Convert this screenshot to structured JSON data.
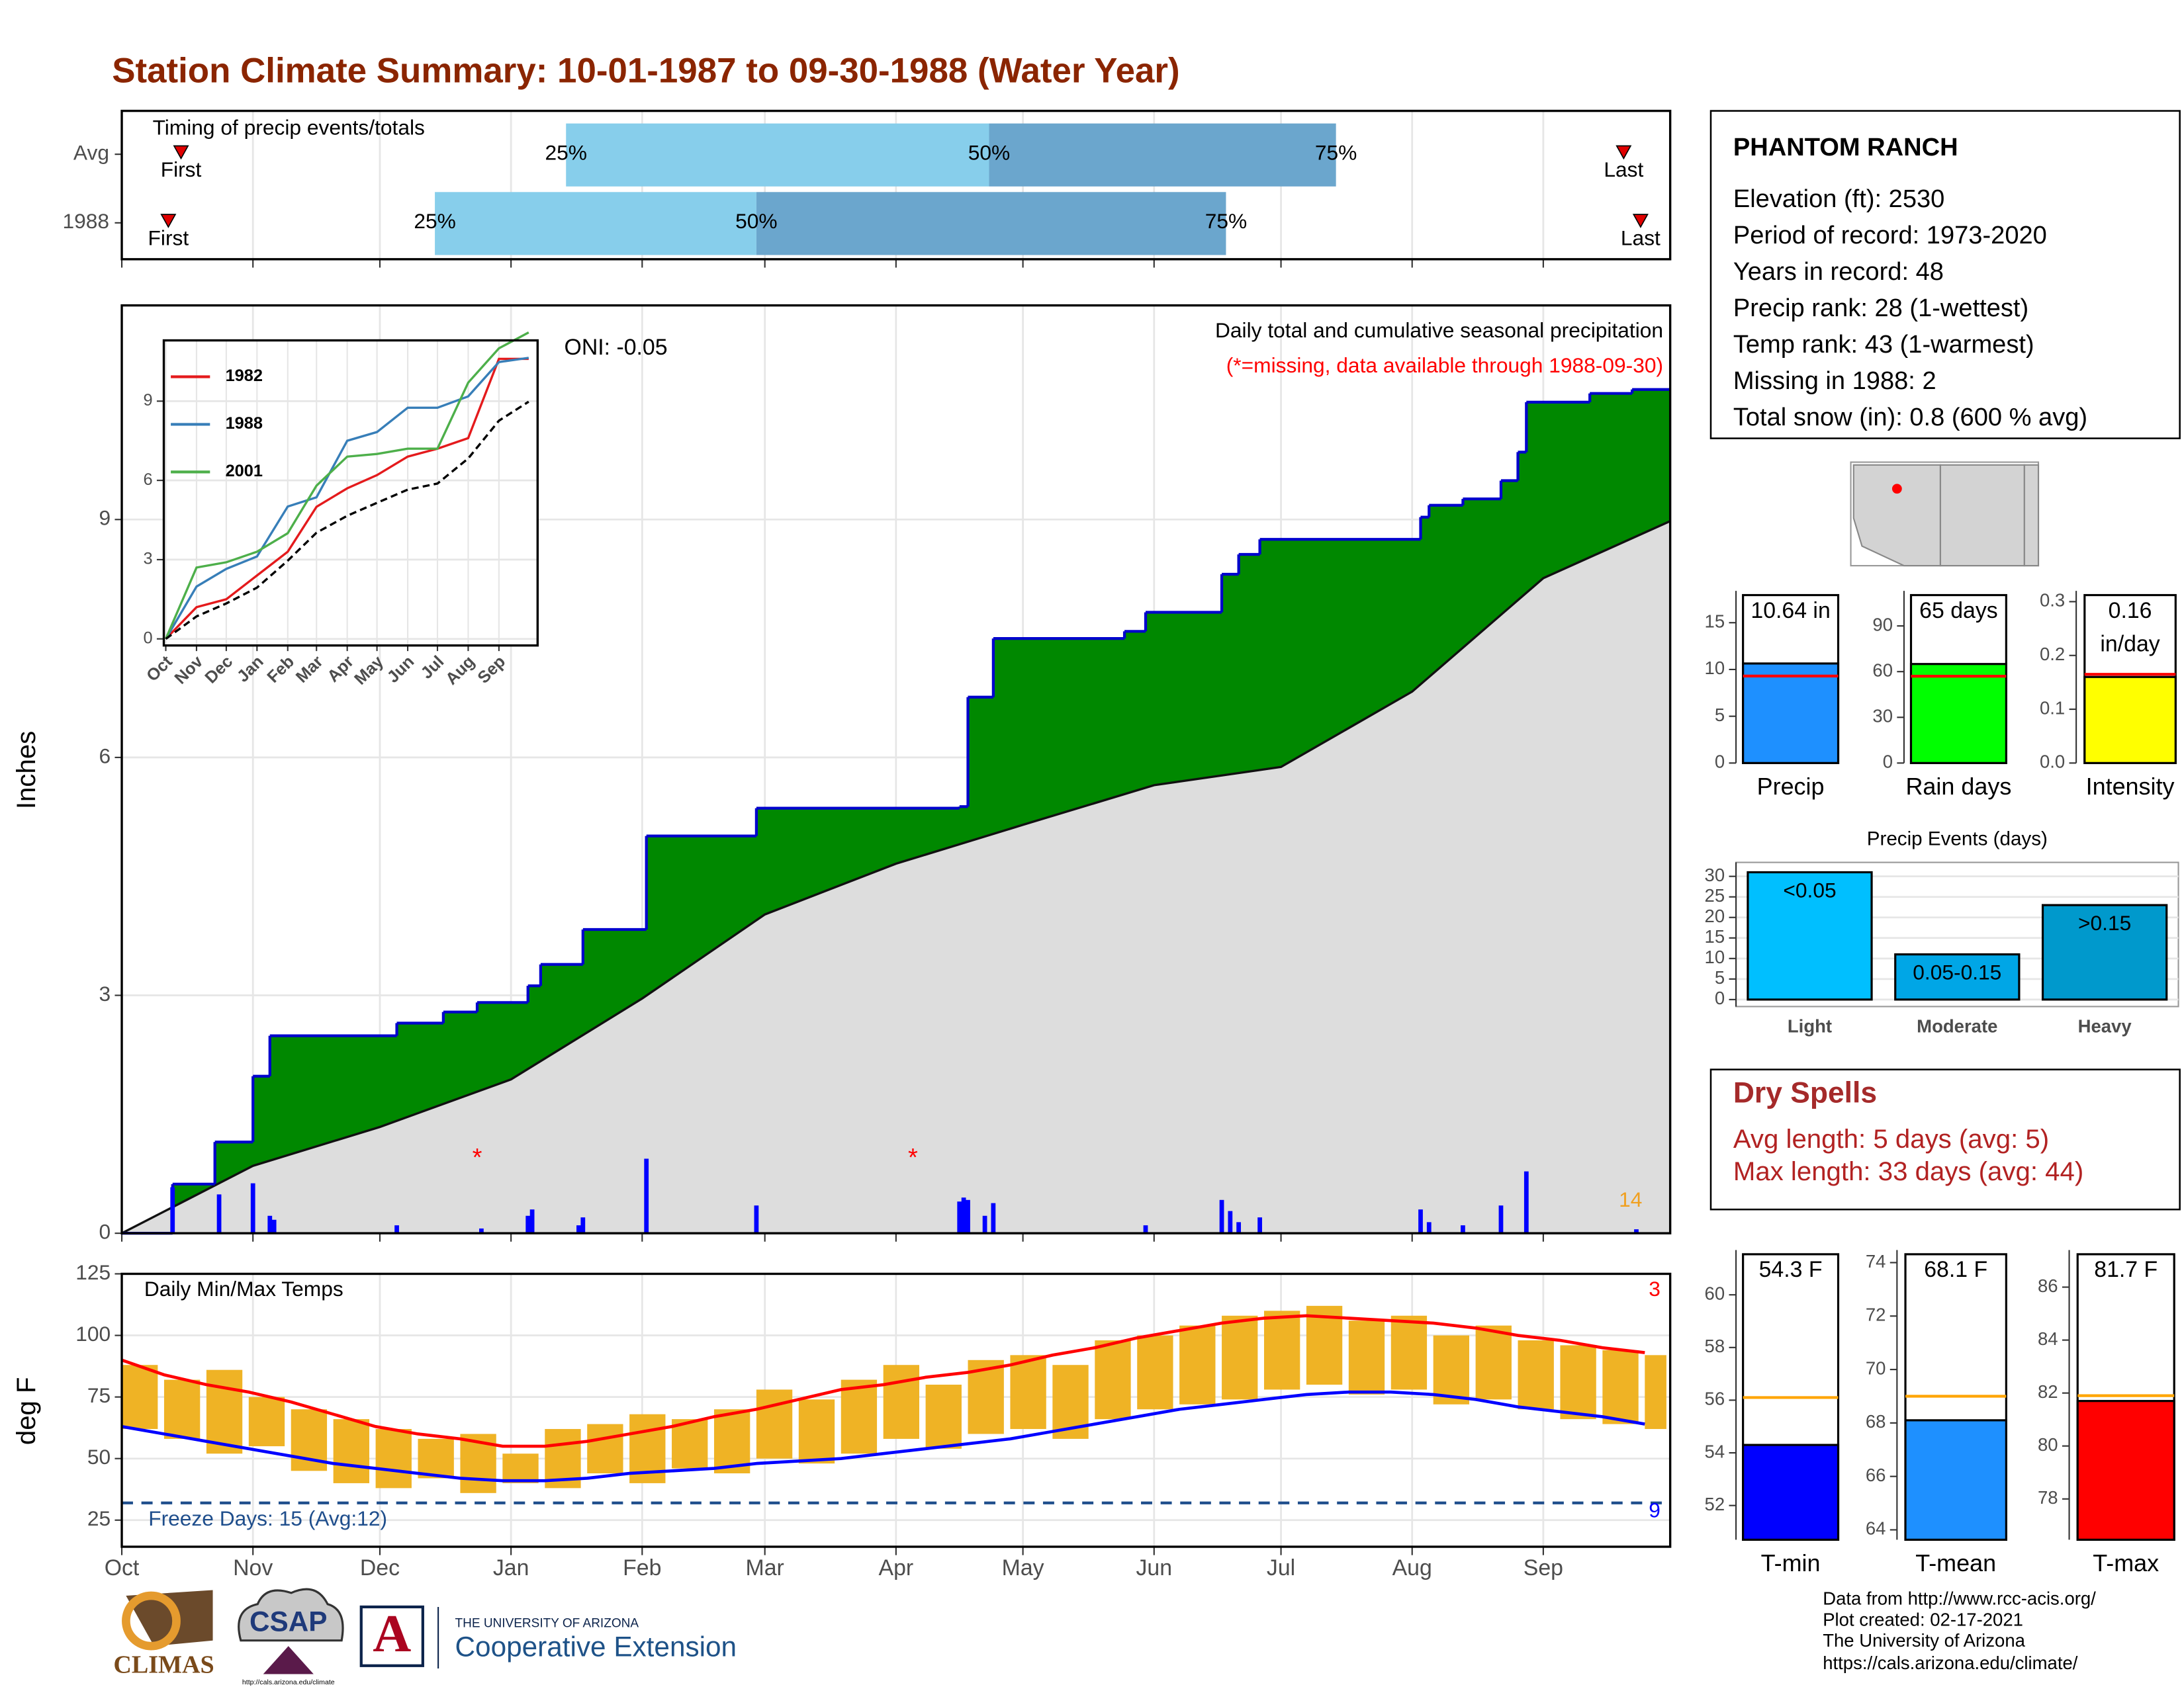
{
  "title": "Station Climate Summary: 10-01-1987 to 09-30-1988 (Water Year)",
  "chart_data": [
    {
      "type": "timing",
      "title": "Timing of precip events/totals",
      "xlim": [
        0,
        366
      ],
      "rows": [
        {
          "name": "Avg",
          "first": 14,
          "q25": 105,
          "q50": 205,
          "q75": 287,
          "last": 355
        },
        {
          "name": "1988",
          "first": 11,
          "q25": 74,
          "q50": 150,
          "q75": 261,
          "last": 359
        }
      ],
      "labels": {
        "first": "First",
        "q25": "25%",
        "q50": "50%",
        "q75": "75%",
        "last": "Last"
      },
      "colors": [
        "#87ceeb",
        "#6ba6cd"
      ],
      "marker_color": "#e00000"
    },
    {
      "type": "cumulative",
      "title": "Daily total and cumulative seasonal precipitation",
      "subtitle": "(*=missing, data available through 1988-09-30)",
      "annotation": "ONI: -0.05",
      "corner_label": 14,
      "ylabel": "Inches",
      "xlim": [
        0,
        366
      ],
      "ylim": [
        0,
        11.7
      ],
      "yticks": [
        0,
        3,
        6,
        9
      ],
      "grid": true,
      "cumulative": {
        "color": "#008800",
        "line_color": "#0000cd",
        "x": [
          0,
          12,
          22,
          31,
          35,
          65,
          76,
          84,
          96,
          99,
          109,
          124,
          150,
          198,
          200,
          206,
          237,
          242,
          260,
          264,
          269,
          307,
          309,
          317,
          326,
          330,
          332,
          347,
          357,
          366
        ],
        "values": [
          0,
          0.62,
          1.15,
          1.98,
          2.49,
          2.65,
          2.79,
          2.91,
          3.12,
          3.39,
          3.83,
          5.01,
          5.36,
          5.38,
          6.76,
          7.5,
          7.59,
          7.83,
          8.31,
          8.56,
          8.75,
          9.03,
          9.18,
          9.26,
          9.49,
          9.85,
          10.48,
          10.59,
          10.64,
          10.64
        ]
      },
      "average": {
        "color": "#dddddd",
        "x": [
          0,
          31,
          61,
          92,
          123,
          152,
          183,
          213,
          244,
          274,
          305,
          336,
          366
        ],
        "values": [
          0,
          0.85,
          1.34,
          1.94,
          2.96,
          4.02,
          4.66,
          5.15,
          5.65,
          5.88,
          6.83,
          8.26,
          8.98
        ]
      },
      "daily": {
        "color": "#0000ff",
        "x": [
          12,
          23,
          31,
          35,
          36,
          65,
          85,
          96,
          97,
          108,
          109,
          124,
          150,
          198,
          199,
          200,
          204,
          206,
          242,
          260,
          262,
          264,
          269,
          307,
          309,
          317,
          326,
          332,
          358
        ],
        "values": [
          0.58,
          0.49,
          0.63,
          0.22,
          0.17,
          0.1,
          0.06,
          0.22,
          0.3,
          0.1,
          0.2,
          0.94,
          0.35,
          0.4,
          0.45,
          0.42,
          0.22,
          0.38,
          0.1,
          0.42,
          0.28,
          0.14,
          0.2,
          0.3,
          0.14,
          0.1,
          0.35,
          0.78,
          0.05
        ]
      },
      "missing": {
        "marker": "*",
        "color": "#ff0000",
        "x": [
          84,
          187
        ]
      }
    },
    {
      "type": "line",
      "xlim": [
        -2,
        375
      ],
      "ylim": [
        -0.25,
        11.3
      ],
      "yticks": [
        0,
        3,
        6,
        9
      ],
      "grid": true,
      "xticks": [
        {
          "value": 0,
          "label": "Oct"
        },
        {
          "value": 31,
          "label": "Nov"
        },
        {
          "value": 61,
          "label": "Dec"
        },
        {
          "value": 92,
          "label": "Jan"
        },
        {
          "value": 123,
          "label": "Feb"
        },
        {
          "value": 152,
          "label": "Mar"
        },
        {
          "value": 183,
          "label": "Apr"
        },
        {
          "value": 213,
          "label": "May"
        },
        {
          "value": 244,
          "label": "Jun"
        },
        {
          "value": 274,
          "label": "Jul"
        },
        {
          "value": 305,
          "label": "Aug"
        },
        {
          "value": 336,
          "label": "Sep"
        }
      ],
      "x": [
        0,
        31,
        61,
        92,
        123,
        152,
        183,
        213,
        244,
        274,
        305,
        336,
        366
      ],
      "series": [
        {
          "name": "1982",
          "color": "#e41a1c",
          "values": [
            0,
            1.2,
            1.5,
            2.4,
            3.3,
            5.0,
            5.7,
            6.2,
            6.9,
            7.2,
            7.6,
            10.6,
            10.6
          ]
        },
        {
          "name": "1988",
          "color": "#377eb8",
          "values": [
            0,
            1.98,
            2.65,
            3.12,
            5.01,
            5.36,
            7.5,
            7.83,
            8.75,
            8.75,
            9.18,
            10.48,
            10.64
          ]
        },
        {
          "name": "2001",
          "color": "#4daf4a",
          "values": [
            0,
            2.7,
            2.9,
            3.3,
            4.0,
            5.8,
            6.9,
            7.0,
            7.2,
            7.2,
            9.7,
            11.0,
            11.6
          ]
        },
        {
          "color": "#000000",
          "dashed": true,
          "values": [
            0,
            0.85,
            1.34,
            1.94,
            2.96,
            4.02,
            4.66,
            5.15,
            5.65,
            5.88,
            6.83,
            8.26,
            8.98
          ]
        }
      ]
    },
    {
      "type": "temperature",
      "title": "Daily Min/Max Temps",
      "ylabel": "deg F",
      "xlim": [
        0,
        366
      ],
      "ylim": [
        14.2,
        125
      ],
      "yticks": [
        25,
        50,
        75,
        100,
        125
      ],
      "grid": true,
      "xticks": [
        {
          "value": 0,
          "label": "Oct"
        },
        {
          "value": 31,
          "label": "Nov"
        },
        {
          "value": 61,
          "label": "Dec"
        },
        {
          "value": 92,
          "label": "Jan"
        },
        {
          "value": 123,
          "label": "Feb"
        },
        {
          "value": 152,
          "label": "Mar"
        },
        {
          "value": 183,
          "label": "Apr"
        },
        {
          "value": 213,
          "label": "May"
        },
        {
          "value": 244,
          "label": "Jun"
        },
        {
          "value": 274,
          "label": "Jul"
        },
        {
          "value": 305,
          "label": "Aug"
        },
        {
          "value": 336,
          "label": "Sep"
        }
      ],
      "x": [
        0,
        10,
        20,
        30,
        40,
        50,
        60,
        70,
        80,
        90,
        100,
        110,
        120,
        130,
        140,
        150,
        160,
        170,
        180,
        190,
        200,
        210,
        220,
        230,
        240,
        250,
        260,
        270,
        280,
        290,
        300,
        310,
        320,
        330,
        340,
        350,
        360
      ],
      "bars": {
        "color": "#efb325",
        "high": [
          88,
          82,
          86,
          75,
          70,
          66,
          62,
          58,
          60,
          52,
          62,
          64,
          68,
          66,
          70,
          78,
          74,
          82,
          88,
          80,
          90,
          92,
          88,
          98,
          100,
          104,
          108,
          110,
          112,
          106,
          108,
          100,
          104,
          98,
          96,
          94,
          92
        ],
        "low": [
          62,
          58,
          52,
          55,
          45,
          40,
          38,
          42,
          36,
          40,
          38,
          44,
          40,
          46,
          44,
          50,
          48,
          52,
          58,
          54,
          60,
          62,
          58,
          66,
          70,
          72,
          74,
          78,
          80,
          76,
          78,
          72,
          74,
          70,
          66,
          64,
          62
        ]
      },
      "normal_high": {
        "color": "#ff0000",
        "values": [
          90,
          84,
          80,
          77,
          73,
          68,
          63,
          60,
          58,
          55,
          55,
          57,
          60,
          63,
          67,
          70,
          74,
          78,
          80,
          83,
          85,
          88,
          92,
          95,
          99,
          102,
          105,
          107,
          108,
          107,
          106,
          105,
          103,
          100,
          98,
          95,
          93
        ]
      },
      "normal_low": {
        "color": "#0000ff",
        "values": [
          63,
          60,
          57,
          54,
          51,
          48,
          46,
          44,
          42,
          41,
          41,
          42,
          44,
          45,
          46,
          48,
          49,
          50,
          52,
          54,
          56,
          58,
          61,
          64,
          67,
          70,
          72,
          74,
          76,
          77,
          77,
          76,
          74,
          71,
          69,
          67,
          64
        ]
      },
      "freeze": {
        "value": 32,
        "label": "Freeze Days: 15 (Avg:12)",
        "color": "#1f4e8c"
      },
      "high_count": 3,
      "low_count": 9
    },
    {
      "type": "summary_bar",
      "xlabel": "Precip",
      "value": 10.64,
      "value_label": [
        "10.64 in"
      ],
      "average": 9.3,
      "color": "#1e90ff",
      "avg_color": "#ff0000",
      "ylim": [
        0,
        18.4
      ],
      "yticks": [
        0,
        5,
        10,
        15
      ]
    },
    {
      "type": "summary_bar",
      "xlabel": "Rain days",
      "value": 65,
      "value_label": [
        "65 days"
      ],
      "average": 57,
      "color": "#00ff00",
      "avg_color": "#ff0000",
      "ylim": [
        0,
        113
      ],
      "yticks": [
        0,
        30,
        60,
        90
      ]
    },
    {
      "type": "summary_bar",
      "xlabel": "Intensity",
      "value": 0.16,
      "value_label": [
        "0.16",
        "in/day"
      ],
      "average": 0.165,
      "color": "#ffff00",
      "avg_color": "#ff0000",
      "ylim": [
        0,
        0.32
      ],
      "yticks": [
        {
          "value": 0,
          "label": "0.0"
        },
        0.1,
        0.2,
        0.3
      ]
    },
    {
      "type": "bar",
      "title": "Precip Events (days)",
      "categories": [
        "Light",
        "Moderate",
        "Heavy"
      ],
      "values": [
        31,
        11,
        23
      ],
      "bin_labels": [
        "<0.05",
        "0.05-0.15",
        ">0.15"
      ],
      "colors": [
        "#00bfff",
        "#00a6e6",
        "#0099cc"
      ],
      "ylim": [
        -1.7,
        33.4
      ],
      "yticks": [
        0,
        5,
        10,
        15,
        20,
        25,
        30
      ],
      "grid": true
    },
    {
      "type": "summary_bar",
      "xlabel": "T-min",
      "value": 54.3,
      "value_label": [
        "54.3 F"
      ],
      "average": 56.1,
      "color": "#0000ff",
      "avg_color": "#ffa500",
      "ylim": [
        50.7,
        61.7
      ],
      "yticks": [
        52,
        54,
        56,
        58,
        60
      ]
    },
    {
      "type": "summary_bar",
      "xlabel": "T-mean",
      "value": 68.1,
      "value_label": [
        "68.1 F"
      ],
      "average": 69,
      "color": "#1e90ff",
      "avg_color": "#ffa500",
      "ylim": [
        63.63,
        74.47
      ],
      "yticks": [
        64,
        66,
        68,
        70,
        72,
        74
      ]
    },
    {
      "type": "summary_bar",
      "xlabel": "T-max",
      "value": 81.7,
      "value_label": [
        "81.7 F"
      ],
      "average": 81.9,
      "color": "#ff0000",
      "avg_color": "#ffa500",
      "ylim": [
        76.46,
        87.4
      ],
      "yticks": [
        78,
        80,
        82,
        84,
        86
      ]
    }
  ],
  "station": {
    "name": "PHANTOM RANCH",
    "lines": [
      "Elevation (ft): 2530",
      "Period of record: 1973-2020",
      "Years in record: 48",
      "Precip rank: 28 (1-wettest)",
      "Temp rank: 43 (1-warmest)",
      "Missing in 1988: 2",
      "Total snow (in): 0.8 (600 % avg)"
    ]
  },
  "dry_spells": {
    "title": "Dry Spells",
    "lines": [
      "Avg length: 5 days (avg: 5)",
      "Max length: 33 days (avg: 44)"
    ]
  },
  "footer": {
    "lines": [
      "Data from http://www.rcc-acis.org/",
      "Plot created: 02-17-2021",
      "The University of Arizona",
      "https://cals.arizona.edu/climate/"
    ]
  },
  "logos": {
    "climas": "CLIMAS",
    "csap": "CSAP",
    "csap_url": "http://cals.arizona.edu/climate",
    "ua_letter": "A",
    "ua_name": "THE UNIVERSITY OF ARIZONA",
    "ua_unit": "Cooperative Extension"
  }
}
